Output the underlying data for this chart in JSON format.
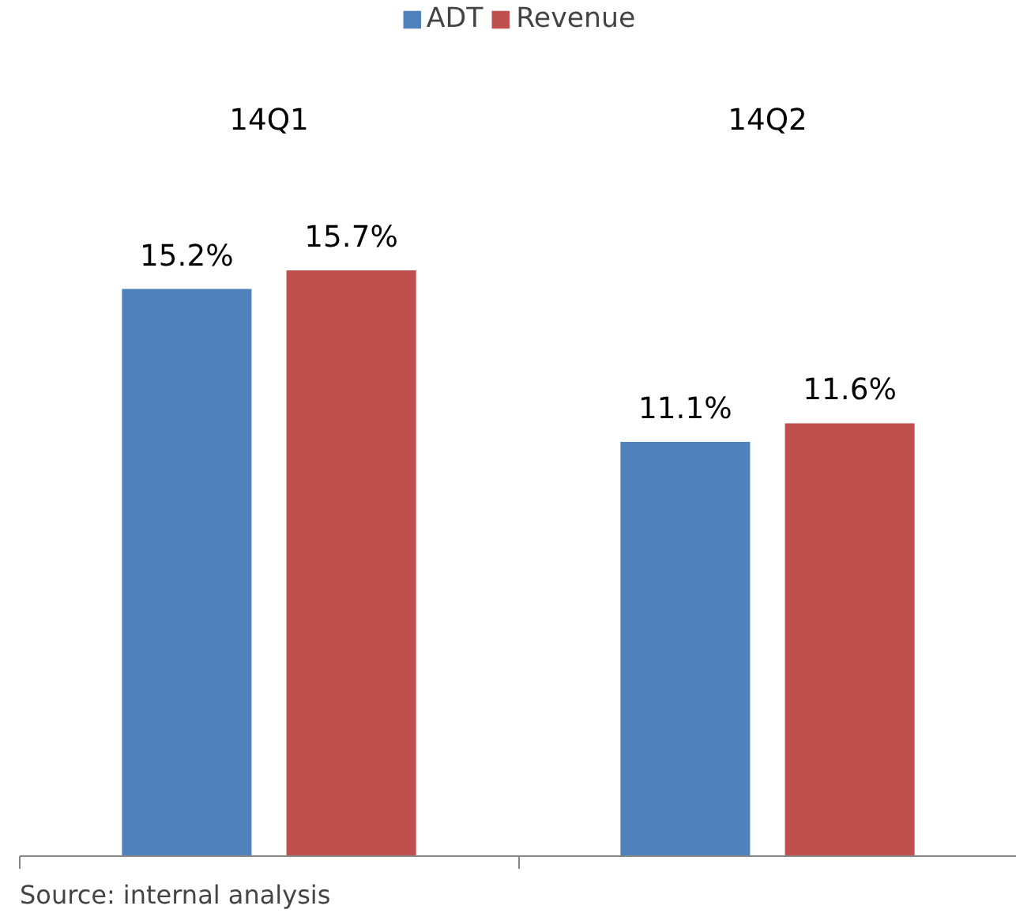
{
  "chart_data": {
    "type": "bar",
    "categories": [
      "14Q1",
      "14Q2"
    ],
    "series": [
      {
        "name": "ADT",
        "color": "#4f81bd",
        "values": [
          15.2,
          11.1
        ],
        "value_labels": [
          "15.2%",
          "11.1%"
        ]
      },
      {
        "name": "Revenue",
        "color": "#c0504d",
        "values": [
          15.7,
          11.6
        ],
        "value_labels": [
          "15.7%",
          "11.6%"
        ]
      }
    ],
    "legend": "top",
    "annotations": [
      "Source: internal analysis"
    ]
  }
}
